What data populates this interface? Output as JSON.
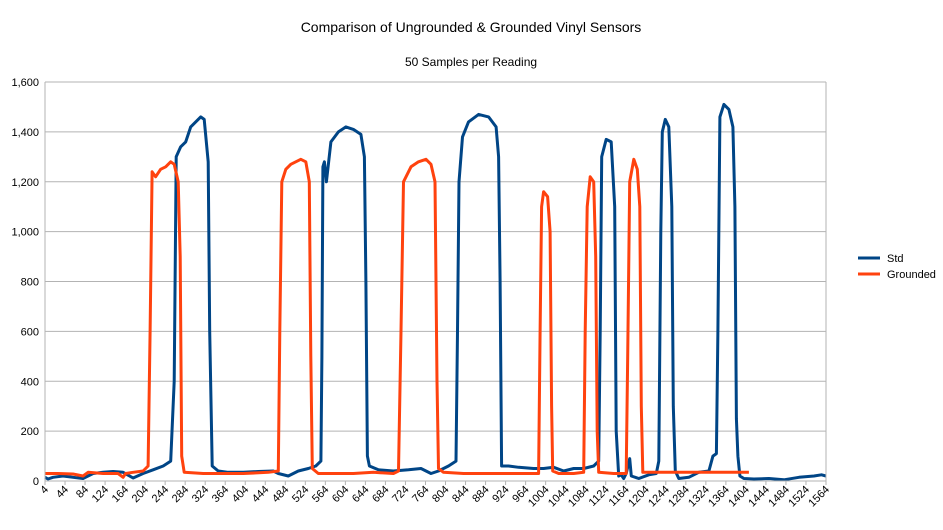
{
  "chart_data": {
    "type": "line",
    "title": "Comparison of Ungrounded & Grounded Vinyl Sensors",
    "subtitle": "50 Samples per Reading",
    "xlabel": "",
    "ylabel": "",
    "xlim": [
      4,
      1564
    ],
    "ylim": [
      0,
      1600
    ],
    "yticks": [
      0,
      200,
      400,
      600,
      800,
      1000,
      1200,
      1400,
      1600
    ],
    "ytick_labels": [
      "0",
      "200",
      "400",
      "600",
      "800",
      "1,000",
      "1,200",
      "1,400",
      "1,600"
    ],
    "xticks": [
      4,
      44,
      84,
      124,
      164,
      204,
      244,
      284,
      324,
      364,
      404,
      444,
      484,
      524,
      564,
      604,
      644,
      684,
      724,
      764,
      804,
      844,
      884,
      924,
      964,
      1004,
      1044,
      1084,
      1124,
      1164,
      1204,
      1244,
      1284,
      1324,
      1364,
      1404,
      1444,
      1484,
      1524,
      1564
    ],
    "xtick_labels": [
      "4",
      "44",
      "84",
      "124",
      "164",
      "204",
      "244",
      "284",
      "324",
      "364",
      "404",
      "444",
      "484",
      "524",
      "564",
      "604",
      "644",
      "684",
      "724",
      "764",
      "804",
      "844",
      "884",
      "924",
      "964",
      "1004",
      "1044",
      "1084",
      "1124",
      "1164",
      "1204",
      "1244",
      "1284",
      "1324",
      "1364",
      "1404",
      "1444",
      "1484",
      "1524",
      "1564"
    ],
    "grid": true,
    "legend_position": "right",
    "series": [
      {
        "name": "Std",
        "color": "#004586",
        "points": [
          [
            4,
            15
          ],
          [
            10,
            8
          ],
          [
            20,
            15
          ],
          [
            40,
            20
          ],
          [
            60,
            15
          ],
          [
            80,
            10
          ],
          [
            100,
            30
          ],
          [
            120,
            35
          ],
          [
            140,
            38
          ],
          [
            160,
            35
          ],
          [
            180,
            12
          ],
          [
            200,
            30
          ],
          [
            220,
            45
          ],
          [
            240,
            60
          ],
          [
            255,
            80
          ],
          [
            262,
            400
          ],
          [
            266,
            1300
          ],
          [
            275,
            1340
          ],
          [
            285,
            1360
          ],
          [
            295,
            1420
          ],
          [
            305,
            1440
          ],
          [
            315,
            1460
          ],
          [
            322,
            1450
          ],
          [
            330,
            1280
          ],
          [
            333,
            600
          ],
          [
            338,
            60
          ],
          [
            350,
            40
          ],
          [
            370,
            35
          ],
          [
            400,
            35
          ],
          [
            430,
            38
          ],
          [
            460,
            40
          ],
          [
            470,
            30
          ],
          [
            490,
            20
          ],
          [
            510,
            40
          ],
          [
            530,
            50
          ],
          [
            545,
            60
          ],
          [
            555,
            80
          ],
          [
            557,
            500
          ],
          [
            559,
            1260
          ],
          [
            562,
            1280
          ],
          [
            566,
            1200
          ],
          [
            575,
            1360
          ],
          [
            590,
            1400
          ],
          [
            605,
            1420
          ],
          [
            620,
            1410
          ],
          [
            635,
            1390
          ],
          [
            642,
            1300
          ],
          [
            645,
            800
          ],
          [
            648,
            100
          ],
          [
            652,
            60
          ],
          [
            670,
            45
          ],
          [
            700,
            40
          ],
          [
            730,
            45
          ],
          [
            755,
            50
          ],
          [
            775,
            30
          ],
          [
            790,
            40
          ],
          [
            810,
            60
          ],
          [
            825,
            80
          ],
          [
            828,
            600
          ],
          [
            831,
            1200
          ],
          [
            838,
            1380
          ],
          [
            850,
            1440
          ],
          [
            870,
            1470
          ],
          [
            890,
            1460
          ],
          [
            905,
            1420
          ],
          [
            910,
            1300
          ],
          [
            913,
            800
          ],
          [
            916,
            60
          ],
          [
            930,
            60
          ],
          [
            950,
            55
          ],
          [
            980,
            50
          ],
          [
            1000,
            50
          ],
          [
            1020,
            55
          ],
          [
            1040,
            40
          ],
          [
            1060,
            50
          ],
          [
            1080,
            50
          ],
          [
            1100,
            60
          ],
          [
            1110,
            80
          ],
          [
            1113,
            600
          ],
          [
            1116,
            1300
          ],
          [
            1125,
            1370
          ],
          [
            1135,
            1360
          ],
          [
            1142,
            1100
          ],
          [
            1145,
            200
          ],
          [
            1150,
            20
          ],
          [
            1155,
            25
          ],
          [
            1160,
            10
          ],
          [
            1165,
            30
          ],
          [
            1172,
            90
          ],
          [
            1175,
            20
          ],
          [
            1190,
            10
          ],
          [
            1210,
            25
          ],
          [
            1225,
            30
          ],
          [
            1230,
            80
          ],
          [
            1234,
            1000
          ],
          [
            1237,
            1400
          ],
          [
            1243,
            1450
          ],
          [
            1250,
            1420
          ],
          [
            1256,
            1100
          ],
          [
            1259,
            300
          ],
          [
            1263,
            40
          ],
          [
            1270,
            10
          ],
          [
            1290,
            15
          ],
          [
            1310,
            35
          ],
          [
            1330,
            40
          ],
          [
            1338,
            100
          ],
          [
            1345,
            110
          ],
          [
            1348,
            600
          ],
          [
            1352,
            1460
          ],
          [
            1360,
            1510
          ],
          [
            1370,
            1490
          ],
          [
            1378,
            1420
          ],
          [
            1382,
            1100
          ],
          [
            1385,
            250
          ],
          [
            1388,
            100
          ],
          [
            1392,
            20
          ],
          [
            1400,
            10
          ],
          [
            1420,
            8
          ],
          [
            1450,
            10
          ],
          [
            1480,
            5
          ],
          [
            1510,
            15
          ],
          [
            1540,
            20
          ],
          [
            1555,
            25
          ],
          [
            1564,
            20
          ]
        ]
      },
      {
        "name": "Grounded",
        "color": "#ff420e",
        "points": [
          [
            4,
            30
          ],
          [
            30,
            30
          ],
          [
            60,
            28
          ],
          [
            80,
            20
          ],
          [
            90,
            35
          ],
          [
            120,
            30
          ],
          [
            150,
            30
          ],
          [
            160,
            15
          ],
          [
            165,
            30
          ],
          [
            180,
            35
          ],
          [
            200,
            40
          ],
          [
            210,
            60
          ],
          [
            214,
            600
          ],
          [
            218,
            1240
          ],
          [
            225,
            1220
          ],
          [
            235,
            1250
          ],
          [
            245,
            1260
          ],
          [
            255,
            1280
          ],
          [
            262,
            1270
          ],
          [
            270,
            1200
          ],
          [
            274,
            900
          ],
          [
            277,
            100
          ],
          [
            282,
            35
          ],
          [
            320,
            30
          ],
          [
            360,
            30
          ],
          [
            400,
            30
          ],
          [
            450,
            35
          ],
          [
            470,
            40
          ],
          [
            473,
            600
          ],
          [
            477,
            1200
          ],
          [
            485,
            1250
          ],
          [
            495,
            1270
          ],
          [
            505,
            1280
          ],
          [
            515,
            1290
          ],
          [
            525,
            1280
          ],
          [
            532,
            1200
          ],
          [
            535,
            500
          ],
          [
            538,
            50
          ],
          [
            550,
            30
          ],
          [
            580,
            30
          ],
          [
            620,
            30
          ],
          [
            660,
            35
          ],
          [
            700,
            30
          ],
          [
            710,
            40
          ],
          [
            715,
            600
          ],
          [
            720,
            1200
          ],
          [
            735,
            1260
          ],
          [
            750,
            1280
          ],
          [
            765,
            1290
          ],
          [
            775,
            1270
          ],
          [
            783,
            1200
          ],
          [
            787,
            400
          ],
          [
            790,
            50
          ],
          [
            800,
            35
          ],
          [
            840,
            30
          ],
          [
            900,
            30
          ],
          [
            960,
            30
          ],
          [
            990,
            30
          ],
          [
            993,
            600
          ],
          [
            996,
            1100
          ],
          [
            1000,
            1160
          ],
          [
            1008,
            1140
          ],
          [
            1013,
            1000
          ],
          [
            1016,
            300
          ],
          [
            1018,
            40
          ],
          [
            1030,
            30
          ],
          [
            1060,
            30
          ],
          [
            1080,
            35
          ],
          [
            1083,
            600
          ],
          [
            1087,
            1100
          ],
          [
            1093,
            1220
          ],
          [
            1100,
            1200
          ],
          [
            1104,
            900
          ],
          [
            1107,
            200
          ],
          [
            1110,
            35
          ],
          [
            1140,
            30
          ],
          [
            1165,
            30
          ],
          [
            1168,
            500
          ],
          [
            1172,
            1200
          ],
          [
            1180,
            1290
          ],
          [
            1187,
            1250
          ],
          [
            1192,
            1100
          ],
          [
            1195,
            300
          ],
          [
            1198,
            35
          ],
          [
            1230,
            35
          ],
          [
            1280,
            35
          ],
          [
            1330,
            35
          ],
          [
            1380,
            35
          ],
          [
            1410,
            35
          ]
        ]
      }
    ]
  }
}
